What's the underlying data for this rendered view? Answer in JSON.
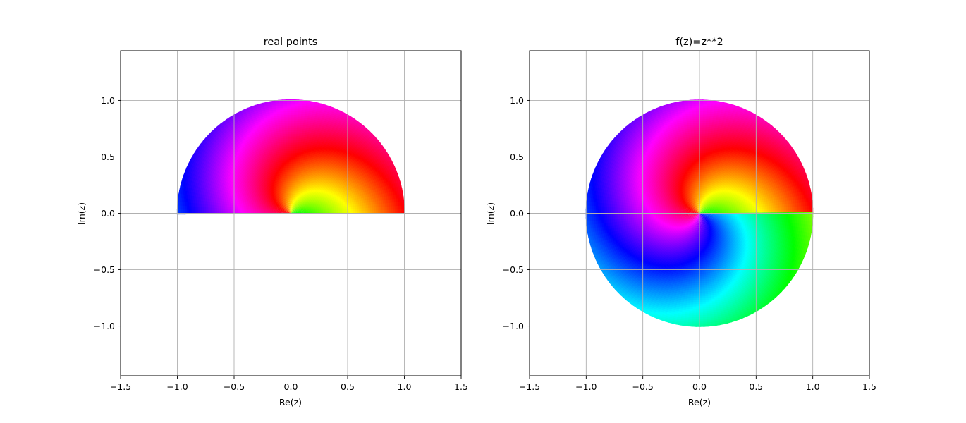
{
  "chart_data": [
    {
      "type": "heatmap",
      "title": "real points",
      "xlabel": "Re(z)",
      "ylabel": "Im(z)",
      "xlim": [
        -1.5,
        1.5
      ],
      "ylim": [
        -1.44,
        1.44
      ],
      "xticks": [
        -1.5,
        -1.0,
        -0.5,
        0.0,
        0.5,
        1.0,
        1.5
      ],
      "xtick_labels": [
        "−1.5",
        "−1.0",
        "−0.5",
        "0.0",
        "0.5",
        "1.0",
        "1.5"
      ],
      "yticks": [
        -1.0,
        -0.5,
        0.0,
        0.5,
        1.0
      ],
      "ytick_labels": [
        "−1.0",
        "−0.5",
        "0.0",
        "0.5",
        "1.0"
      ],
      "grid": true,
      "domain": "upper half unit disk",
      "radius": 1.0,
      "theta_range_deg": [
        0,
        180
      ],
      "coloring": "hue by spiral phase",
      "hue_start_deg": 0,
      "hue_direction": "clockwise"
    },
    {
      "type": "heatmap",
      "title": "f(z)=z**2",
      "xlabel": "Re(z)",
      "ylabel": "Im(z)",
      "xlim": [
        -1.5,
        1.5
      ],
      "ylim": [
        -1.44,
        1.44
      ],
      "xticks": [
        -1.5,
        -1.0,
        -0.5,
        0.0,
        0.5,
        1.0,
        1.5
      ],
      "xtick_labels": [
        "−1.5",
        "−1.0",
        "−0.5",
        "0.0",
        "0.5",
        "1.0",
        "1.5"
      ],
      "yticks": [
        -1.0,
        -0.5,
        0.0,
        0.5,
        1.0
      ],
      "ytick_labels": [
        "−1.0",
        "−0.5",
        "0.0",
        "0.5",
        "1.0"
      ],
      "grid": true,
      "domain": "full unit disk",
      "radius": 1.0,
      "theta_range_deg": [
        0,
        360
      ],
      "coloring": "hue by spiral phase",
      "hue_start_deg": 0,
      "hue_direction": "clockwise"
    }
  ]
}
